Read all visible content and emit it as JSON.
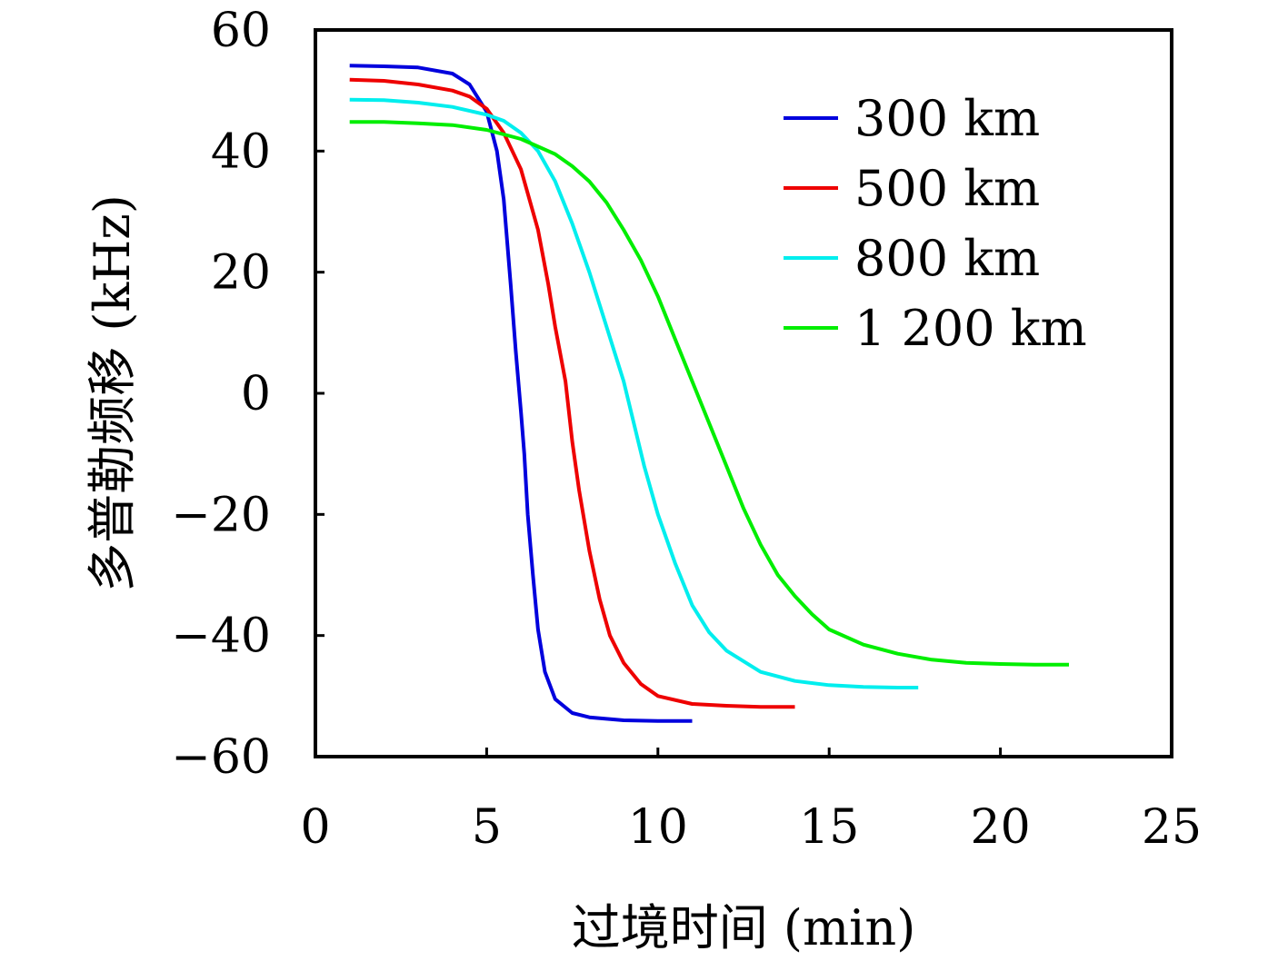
{
  "chart_data": {
    "type": "line",
    "title": "",
    "xlabel": "过境时间 (min)",
    "ylabel": "多普勒频移 (kHz)",
    "xlim": [
      0,
      25
    ],
    "ylim": [
      -60,
      60
    ],
    "xticks": [
      "0",
      "5",
      "10",
      "15",
      "20",
      "25"
    ],
    "yticks": [
      "60",
      "40",
      "20",
      "0",
      "−20",
      "−40",
      "−60"
    ],
    "xtick_values": [
      0,
      5,
      10,
      15,
      20,
      25
    ],
    "ytick_values": [
      60,
      40,
      20,
      0,
      -20,
      -40,
      -60
    ],
    "grid": false,
    "legend_position": "top-right",
    "series": [
      {
        "name": "300 km",
        "color": "#0000dd",
        "x": [
          1.0,
          2.0,
          3.0,
          4.0,
          4.5,
          5.0,
          5.3,
          5.5,
          5.7,
          5.85,
          6.0,
          6.1,
          6.2,
          6.35,
          6.5,
          6.7,
          7.0,
          7.5,
          8.0,
          9.0,
          10.0,
          11.0
        ],
        "y": [
          54.1,
          54.0,
          53.8,
          52.8,
          51.0,
          46.5,
          40.0,
          32.0,
          18.0,
          7.0,
          -3.0,
          -10.0,
          -20.0,
          -30.0,
          -39.0,
          -46.0,
          -50.5,
          -52.8,
          -53.5,
          -54.0,
          -54.1,
          -54.1
        ]
      },
      {
        "name": "500 km",
        "color": "#ee0000",
        "x": [
          1.0,
          2.0,
          3.0,
          4.0,
          4.5,
          5.0,
          5.5,
          6.0,
          6.5,
          6.8,
          7.0,
          7.3,
          7.5,
          7.7,
          8.0,
          8.3,
          8.6,
          9.0,
          9.5,
          10.0,
          11.0,
          12.0,
          13.0,
          14.0
        ],
        "y": [
          51.8,
          51.6,
          51.0,
          50.0,
          49.0,
          47.0,
          43.0,
          37.0,
          27.0,
          18.0,
          11.0,
          2.0,
          -8.0,
          -16.0,
          -26.0,
          -34.0,
          -40.0,
          -44.5,
          -48.0,
          -50.0,
          -51.3,
          -51.6,
          -51.8,
          -51.8
        ]
      },
      {
        "name": "800 km",
        "color": "#00eeee",
        "x": [
          1.0,
          2.0,
          3.0,
          4.0,
          5.0,
          5.5,
          6.0,
          6.5,
          7.0,
          7.5,
          8.0,
          8.5,
          9.0,
          9.3,
          9.6,
          10.0,
          10.5,
          11.0,
          11.5,
          12.0,
          13.0,
          14.0,
          15.0,
          16.0,
          17.0,
          17.6
        ],
        "y": [
          48.5,
          48.4,
          48.0,
          47.3,
          46.0,
          45.0,
          43.0,
          40.0,
          35.0,
          28.0,
          20.0,
          11.0,
          2.0,
          -5.0,
          -12.0,
          -20.0,
          -28.0,
          -35.0,
          -39.5,
          -42.5,
          -46.0,
          -47.5,
          -48.2,
          -48.5,
          -48.6,
          -48.6
        ]
      },
      {
        "name": "1 200 km",
        "color": "#00ee00",
        "x": [
          1.0,
          2.0,
          3.0,
          4.0,
          5.0,
          6.0,
          7.0,
          7.5,
          8.0,
          8.5,
          9.0,
          9.5,
          10.0,
          10.5,
          11.0,
          11.5,
          12.0,
          12.5,
          13.0,
          13.5,
          14.0,
          14.5,
          15.0,
          16.0,
          17.0,
          18.0,
          19.0,
          20.0,
          21.0,
          22.0
        ],
        "y": [
          44.8,
          44.8,
          44.6,
          44.3,
          43.5,
          42.0,
          39.5,
          37.5,
          35.0,
          31.5,
          27.0,
          22.0,
          16.0,
          9.0,
          2.0,
          -5.0,
          -12.0,
          -19.0,
          -25.0,
          -30.0,
          -33.5,
          -36.5,
          -39.0,
          -41.5,
          -43.0,
          -44.0,
          -44.5,
          -44.7,
          -44.8,
          -44.8
        ]
      }
    ]
  }
}
